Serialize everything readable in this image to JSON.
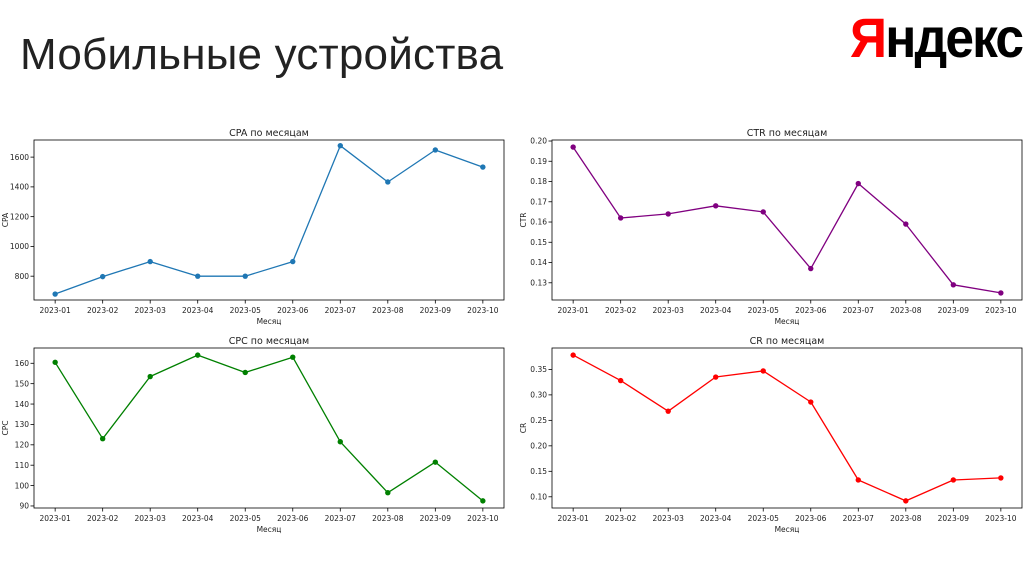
{
  "page": {
    "title": "Мобильные устройства",
    "logo": {
      "first_letter": "Я",
      "rest": "ндекс"
    }
  },
  "chart_data": [
    {
      "type": "line",
      "title": "CPA по месяцам",
      "xlabel": "Месяц",
      "ylabel": "CPA",
      "color": "#1f77b4",
      "categories": [
        "2023-01",
        "2023-02",
        "2023-03",
        "2023-04",
        "2023-05",
        "2023-06",
        "2023-07",
        "2023-08",
        "2023-09",
        "2023-10"
      ],
      "values": [
        680,
        797,
        898,
        800,
        800,
        898,
        1677,
        1433,
        1648,
        1533
      ],
      "ylim": [
        640,
        1715
      ],
      "yticks": [
        800,
        1000,
        1200,
        1400,
        1600
      ],
      "ytick_labels": [
        "800",
        "1000",
        "1200",
        "1400",
        "1600"
      ],
      "grid": false
    },
    {
      "type": "line",
      "title": "CTR по месяцам",
      "xlabel": "Месяц",
      "ylabel": "CTR",
      "color": "#800080",
      "categories": [
        "2023-01",
        "2023-02",
        "2023-03",
        "2023-04",
        "2023-05",
        "2023-06",
        "2023-07",
        "2023-08",
        "2023-09",
        "2023-10"
      ],
      "values": [
        0.197,
        0.162,
        0.164,
        0.168,
        0.165,
        0.137,
        0.179,
        0.159,
        0.129,
        0.125
      ],
      "ylim": [
        0.1215,
        0.2005
      ],
      "yticks": [
        0.13,
        0.14,
        0.15,
        0.16,
        0.17,
        0.18,
        0.19,
        0.2
      ],
      "ytick_labels": [
        "0.13",
        "0.14",
        "0.15",
        "0.16",
        "0.17",
        "0.18",
        "0.19",
        "0.20"
      ],
      "grid": false
    },
    {
      "type": "line",
      "title": "CPC по месяцам",
      "xlabel": "Месяц",
      "ylabel": "CPC",
      "color": "#008000",
      "categories": [
        "2023-01",
        "2023-02",
        "2023-03",
        "2023-04",
        "2023-05",
        "2023-06",
        "2023-07",
        "2023-08",
        "2023-09",
        "2023-10"
      ],
      "values": [
        160.5,
        123.0,
        153.5,
        164.0,
        155.5,
        163.0,
        121.5,
        96.5,
        111.5,
        92.5
      ],
      "ylim": [
        89,
        167.5
      ],
      "yticks": [
        90,
        100,
        110,
        120,
        130,
        140,
        150,
        160
      ],
      "ytick_labels": [
        "90",
        "100",
        "110",
        "120",
        "130",
        "140",
        "150",
        "160"
      ],
      "grid": false
    },
    {
      "type": "line",
      "title": "CR по месяцам",
      "xlabel": "Месяц",
      "ylabel": "CR",
      "color": "#ff0000",
      "categories": [
        "2023-01",
        "2023-02",
        "2023-03",
        "2023-04",
        "2023-05",
        "2023-06",
        "2023-07",
        "2023-08",
        "2023-09",
        "2023-10"
      ],
      "values": [
        0.378,
        0.328,
        0.268,
        0.335,
        0.347,
        0.286,
        0.133,
        0.092,
        0.133,
        0.137
      ],
      "ylim": [
        0.078,
        0.392
      ],
      "yticks": [
        0.1,
        0.15,
        0.2,
        0.25,
        0.3,
        0.35
      ],
      "ytick_labels": [
        "0.10",
        "0.15",
        "0.20",
        "0.25",
        "0.30",
        "0.35"
      ],
      "grid": false
    }
  ]
}
